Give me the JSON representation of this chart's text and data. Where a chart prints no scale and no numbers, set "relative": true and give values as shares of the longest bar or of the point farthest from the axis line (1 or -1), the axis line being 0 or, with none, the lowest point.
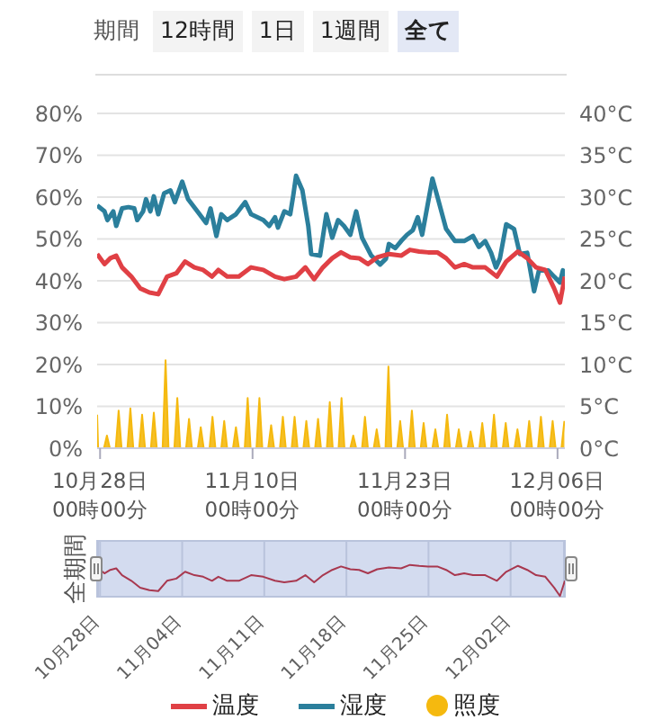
{
  "chart_data": [
    {
      "type": "line",
      "annotations": [
        "期間",
        "12時間",
        "1日",
        "1週間",
        "全て"
      ],
      "xlim": [
        "--10-27T18:00",
        "--12-06T15:00"
      ],
      "xticks": [
        {
          "value": "--10-28T00:00",
          "label": "10月28日\n00時00分"
        },
        {
          "value": "--11-10T00:00",
          "label": "11月10日\n00時00分"
        },
        {
          "value": "--11-23T00:00",
          "label": "11月23日\n00時00分"
        },
        {
          "value": "--12-06T00:00",
          "label": "12月06日\n00時00分"
        }
      ],
      "ylim": [
        0,
        80
      ],
      "yticks": [
        {
          "value": 0,
          "label": "0%"
        },
        {
          "value": 10,
          "label": "10%"
        },
        {
          "value": 20,
          "label": "20%"
        },
        {
          "value": 30,
          "label": "30%"
        },
        {
          "value": 40,
          "label": "40%"
        },
        {
          "value": 50,
          "label": "50%"
        },
        {
          "value": 60,
          "label": "60%"
        },
        {
          "value": 70,
          "label": "70%"
        },
        {
          "value": 80,
          "label": "80%"
        }
      ],
      "y2lim": [
        0,
        40
      ],
      "y2ticks": [
        {
          "value": 0,
          "label": "0°C"
        },
        {
          "value": 5,
          "label": "5°C"
        },
        {
          "value": 10,
          "label": "10°C"
        },
        {
          "value": 15,
          "label": "15°C"
        },
        {
          "value": 20,
          "label": "20°C"
        },
        {
          "value": 25,
          "label": "25°C"
        },
        {
          "value": 30,
          "label": "30°C"
        },
        {
          "value": 35,
          "label": "35°C"
        },
        {
          "value": 40,
          "label": "40°C"
        }
      ],
      "grid": "y",
      "legend": "bottom",
      "series": [
        {
          "name": "照度",
          "type": "area",
          "color": "#f5b90f",
          "x": [
            "--10-27T18:00",
            "--10-27T20:00",
            "--10-28T08:00",
            "--10-28T14:00",
            "--10-28T20:00",
            "--10-29T08:00",
            "--10-29T14:00",
            "--10-29T20:00",
            "--10-30T08:00",
            "--10-30T14:00",
            "--10-30T20:00",
            "--10-31T08:00",
            "--10-31T14:00",
            "--10-31T20:00",
            "--11-01T08:00",
            "--11-01T14:00",
            "--11-01T20:00",
            "--11-02T08:00",
            "--11-02T14:00",
            "--11-02T20:00",
            "--11-03T08:00",
            "--11-03T14:00",
            "--11-03T20:00",
            "--11-04T08:00",
            "--11-04T14:00",
            "--11-04T20:00",
            "--11-05T08:00",
            "--11-05T14:00",
            "--11-05T20:00",
            "--11-06T08:00",
            "--11-06T14:00",
            "--11-06T20:00",
            "--11-07T08:00",
            "--11-07T14:00",
            "--11-07T20:00",
            "--11-08T08:00",
            "--11-08T14:00",
            "--11-08T20:00",
            "--11-09T08:00",
            "--11-09T14:00",
            "--11-09T20:00",
            "--11-10T08:00",
            "--11-10T14:00",
            "--11-10T20:00",
            "--11-11T08:00",
            "--11-11T14:00",
            "--11-11T20:00",
            "--11-12T08:00",
            "--11-12T14:00",
            "--11-12T20:00",
            "--11-13T08:00",
            "--11-13T14:00",
            "--11-13T20:00",
            "--11-14T08:00",
            "--11-14T14:00",
            "--11-14T20:00",
            "--11-15T08:00",
            "--11-15T14:00",
            "--11-15T20:00",
            "--11-16T08:00",
            "--11-16T14:00",
            "--11-16T20:00",
            "--11-17T08:00",
            "--11-17T14:00",
            "--11-17T20:00",
            "--11-18T08:00",
            "--11-18T14:00",
            "--11-18T20:00",
            "--11-19T08:00",
            "--11-19T14:00",
            "--11-19T20:00",
            "--11-20T08:00",
            "--11-20T14:00",
            "--11-20T20:00",
            "--11-21T08:00",
            "--11-21T14:00",
            "--11-21T20:00",
            "--11-22T08:00",
            "--11-22T14:00",
            "--11-22T20:00",
            "--11-23T08:00",
            "--11-23T14:00",
            "--11-23T20:00",
            "--11-24T08:00",
            "--11-24T14:00",
            "--11-24T20:00",
            "--11-25T08:00",
            "--11-25T14:00",
            "--11-25T20:00",
            "--11-26T08:00",
            "--11-26T14:00",
            "--11-26T20:00",
            "--11-27T08:00",
            "--11-27T14:00",
            "--11-27T20:00",
            "--11-28T08:00",
            "--11-28T14:00",
            "--11-28T20:00",
            "--11-29T08:00",
            "--11-29T14:00",
            "--11-29T20:00",
            "--11-30T08:00",
            "--11-30T14:00",
            "--11-30T20:00",
            "--12-01T08:00",
            "--12-01T14:00",
            "--12-01T20:00",
            "--12-02T08:00",
            "--12-02T14:00",
            "--12-02T20:00",
            "--12-03T08:00",
            "--12-03T14:00",
            "--12-03T20:00",
            "--12-04T08:00",
            "--12-04T14:00",
            "--12-04T20:00",
            "--12-05T08:00",
            "--12-05T14:00",
            "--12-05T20:00",
            "--12-06T08:00",
            "--12-06T14:00"
          ],
          "values": [
            8,
            0,
            0,
            3,
            0,
            0,
            9,
            0,
            0,
            9.5,
            0,
            0,
            8,
            0,
            0,
            8.5,
            0,
            0,
            21,
            0,
            0,
            12,
            0,
            0,
            7,
            0,
            0,
            5,
            0,
            0,
            7.5,
            0,
            0,
            6.5,
            0,
            0,
            5,
            0,
            0,
            12,
            0,
            0,
            12,
            0,
            0,
            5.5,
            0,
            0,
            7.5,
            0,
            0,
            7.5,
            0,
            0,
            6.5,
            0,
            0,
            7,
            0,
            0,
            11,
            0,
            0,
            12,
            0,
            0,
            3,
            0,
            0,
            7.5,
            0,
            0,
            4.5,
            0,
            0,
            19.5,
            0,
            0,
            6.5,
            0,
            0,
            9,
            0,
            0,
            6,
            0,
            0,
            4.5,
            0,
            0,
            8,
            0,
            0,
            4.5,
            0,
            0,
            4,
            0,
            0,
            6,
            0,
            0,
            8,
            0,
            0,
            6,
            0,
            0,
            4.5,
            0,
            0,
            6.5,
            0,
            0,
            7.5,
            0,
            0,
            6.5,
            0,
            0,
            6.5
          ]
        },
        {
          "name": "湿度",
          "color": "#2b7f9c",
          "x": [
            "--10-27T18:00",
            "--10-28T09:00",
            "--10-28T15:00",
            "--10-29T03:00",
            "--10-29T09:00",
            "--10-29T21:00",
            "--10-30T10:00",
            "--10-30T22:00",
            "--10-31T04:00",
            "--10-31T16:00",
            "--10-31T22:00",
            "--11-01T07:00",
            "--11-01T14:00",
            "--11-01T23:00",
            "--11-02T11:00",
            "--11-03T00:00",
            "--11-03T09:00",
            "--11-04T00:00",
            "--11-04T12:00",
            "--11-05T07:00",
            "--11-06T01:00",
            "--11-06T10:00",
            "--11-06T22:00",
            "--11-07T08:00",
            "--11-07T20:00",
            "--11-08T14:00",
            "--11-09T09:00",
            "--11-09T21:00",
            "--11-10T22:00",
            "--11-11T10:00",
            "--11-11T22:00",
            "--11-12T04:00",
            "--11-12T17:00",
            "--11-13T05:00",
            "--11-13T11:00",
            "--11-13T17:00",
            "--11-14T06:00",
            "--11-14T18:00",
            "--11-15T00:00",
            "--11-15T18:00",
            "--11-16T07:00",
            "--11-16T19:00",
            "--11-17T07:00",
            "--11-17T19:00",
            "--11-18T08:00",
            "--11-18T20:00",
            "--11-19T08:00",
            "--11-20T03:00",
            "--11-20T21:00",
            "--11-21T09:00",
            "--11-21T15:00",
            "--11-22T04:00",
            "--11-22T16:00",
            "--11-23T04:00",
            "--11-23T16:00",
            "--11-24T02:00",
            "--11-24T11:00",
            "--11-25T08:00",
            "--11-25T18:00",
            "--11-26T12:00",
            "--11-27T06:00",
            "--11-28T01:00",
            "--11-28T19:00",
            "--11-29T07:00",
            "--11-29T20:00",
            "--11-30T08:00",
            "--11-30T18:00",
            "--12-01T02:00",
            "--12-01T15:00",
            "--12-02T07:00",
            "--12-02T19:00",
            "--12-03T10:00",
            "--12-04T00:00",
            "--12-04T10:00",
            "--12-05T05:00",
            "--12-05T17:00",
            "--12-06T05:00",
            "--12-06T11:00",
            "--12-06T15:00"
          ],
          "values": [
            58,
            56.6,
            54.5,
            56.6,
            53.1,
            57.3,
            57.6,
            57.3,
            54.5,
            56.6,
            59.5,
            56.6,
            60.2,
            55.9,
            60.9,
            61.6,
            58.8,
            63.7,
            59.5,
            56.6,
            53.8,
            57.3,
            50.7,
            55.9,
            54.5,
            55.9,
            58.8,
            55.9,
            54.5,
            53.1,
            55.2,
            52.7,
            56.6,
            55.9,
            60.2,
            65.1,
            61.6,
            53.1,
            46.4,
            46,
            55.9,
            50.3,
            54.5,
            53.1,
            51,
            56.6,
            50.3,
            46,
            43.9,
            45.3,
            48.8,
            47.8,
            49.5,
            51,
            52.1,
            55.2,
            51,
            64.4,
            60.2,
            52.4,
            49.5,
            49.5,
            50.7,
            48.1,
            49.5,
            46.7,
            43.2,
            45.3,
            53.5,
            52.4,
            46.4,
            46.7,
            37.5,
            42.5,
            42.5,
            41,
            39.6,
            42.5,
            41
          ]
        },
        {
          "name": "温度",
          "color": "#e04045",
          "axis": "y2",
          "x": [
            "--10-27T18:00",
            "--10-28T09:00",
            "--10-28T21:00",
            "--10-29T09:00",
            "--10-29T21:00",
            "--10-30T16:00",
            "--10-31T10:00",
            "--11-01T05:00",
            "--11-01T23:00",
            "--11-02T17:00",
            "--11-03T12:00",
            "--11-04T06:00",
            "--11-05T01:00",
            "--11-05T19:00",
            "--11-06T13:00",
            "--11-07T02:00",
            "--11-07T20:00",
            "--11-08T20:00",
            "--11-09T21:00",
            "--11-10T22:00",
            "--11-11T22:00",
            "--11-12T17:00",
            "--11-13T17:00",
            "--11-14T12:00",
            "--11-15T06:00",
            "--11-16T00:00",
            "--11-16T19:00",
            "--11-17T13:00",
            "--11-18T08:00",
            "--11-19T02:00",
            "--11-19T20:00",
            "--11-20T15:00",
            "--11-21T15:00",
            "--11-22T16:00",
            "--11-23T10:00",
            "--11-24T05:00",
            "--11-24T23:00",
            "--11-25T18:00",
            "--11-26T12:00",
            "--11-27T06:00",
            "--11-28T01:00",
            "--11-28T19:00",
            "--11-29T20:00",
            "--11-30T20:00",
            "--12-01T15:00",
            "--12-02T15:00",
            "--12-03T10:00",
            "--12-04T04:00",
            "--12-04T23:00",
            "--12-05T17:00",
            "--12-06T05:00",
            "--12-06T15:00"
          ],
          "values": [
            23.2,
            22,
            22.7,
            23,
            21.6,
            20.5,
            19.1,
            18.6,
            18.4,
            20.5,
            20.9,
            22.3,
            21.6,
            21.3,
            20.5,
            21.3,
            20.5,
            20.5,
            21.6,
            21.3,
            20.5,
            20.2,
            20.5,
            21.6,
            20.2,
            21.6,
            22.7,
            23.4,
            22.8,
            22.7,
            22,
            22.8,
            23.2,
            23,
            23.7,
            23.5,
            23.4,
            23.4,
            22.7,
            21.6,
            22,
            21.6,
            21.6,
            20.5,
            22.3,
            23.5,
            22.7,
            21.6,
            21.3,
            19.1,
            17.4,
            20.5
          ]
        }
      ]
    },
    {
      "type": "line",
      "ylabel": "全期間",
      "xlim": [
        "--10-27T18:00",
        "--12-06T15:00"
      ],
      "relative": true,
      "grid": "x",
      "tick_labels": "x",
      "xticks": [
        {
          "value": "--10-28T00:00",
          "label": "10月28日"
        },
        {
          "value": "--11-04T00:00",
          "label": "11月04日"
        },
        {
          "value": "--11-11T00:00",
          "label": "11月11日"
        },
        {
          "value": "--11-18T00:00",
          "label": "11月18日"
        },
        {
          "value": "--11-25T00:00",
          "label": "11月25日"
        },
        {
          "value": "--12-02T00:00",
          "label": "12月02日"
        }
      ],
      "x": [
        "--10-27T18:00",
        "--10-28T09:00",
        "--10-28T21:00",
        "--10-29T09:00",
        "--10-29T21:00",
        "--10-30T16:00",
        "--10-31T10:00",
        "--11-01T05:00",
        "--11-01T23:00",
        "--11-02T17:00",
        "--11-03T12:00",
        "--11-04T06:00",
        "--11-05T01:00",
        "--11-05T19:00",
        "--11-06T13:00",
        "--11-07T02:00",
        "--11-07T20:00",
        "--11-08T20:00",
        "--11-09T21:00",
        "--11-10T22:00",
        "--11-11T22:00",
        "--11-12T17:00",
        "--11-13T17:00",
        "--11-14T12:00",
        "--11-15T06:00",
        "--11-16T00:00",
        "--11-16T19:00",
        "--11-17T13:00",
        "--11-18T08:00",
        "--11-19T02:00",
        "--11-19T20:00",
        "--11-20T15:00",
        "--11-21T15:00",
        "--11-22T16:00",
        "--11-23T10:00",
        "--11-24T05:00",
        "--11-24T23:00",
        "--11-25T18:00",
        "--11-26T12:00",
        "--11-27T06:00",
        "--11-28T01:00",
        "--11-28T19:00",
        "--11-29T20:00",
        "--11-30T20:00",
        "--12-01T15:00",
        "--12-02T15:00",
        "--12-03T10:00",
        "--12-04T04:00",
        "--12-04T23:00",
        "--12-05T17:00",
        "--12-06T05:00",
        "--12-06T15:00"
      ],
      "series": [
        {
          "color": "#a8384f",
          "values": [
            0.92,
            0.73,
            0.84,
            0.89,
            0.67,
            0.49,
            0.27,
            0.19,
            0.16,
            0.49,
            0.56,
            0.78,
            0.67,
            0.62,
            0.49,
            0.62,
            0.49,
            0.49,
            0.67,
            0.62,
            0.49,
            0.44,
            0.49,
            0.67,
            0.44,
            0.67,
            0.84,
            0.95,
            0.86,
            0.84,
            0.73,
            0.86,
            0.92,
            0.89,
            1,
            0.97,
            0.95,
            0.95,
            0.84,
            0.67,
            0.73,
            0.67,
            0.67,
            0.49,
            0.78,
            0.97,
            0.84,
            0.67,
            0.62,
            0.27,
            0,
            0.49
          ]
        }
      ]
    }
  ]
}
